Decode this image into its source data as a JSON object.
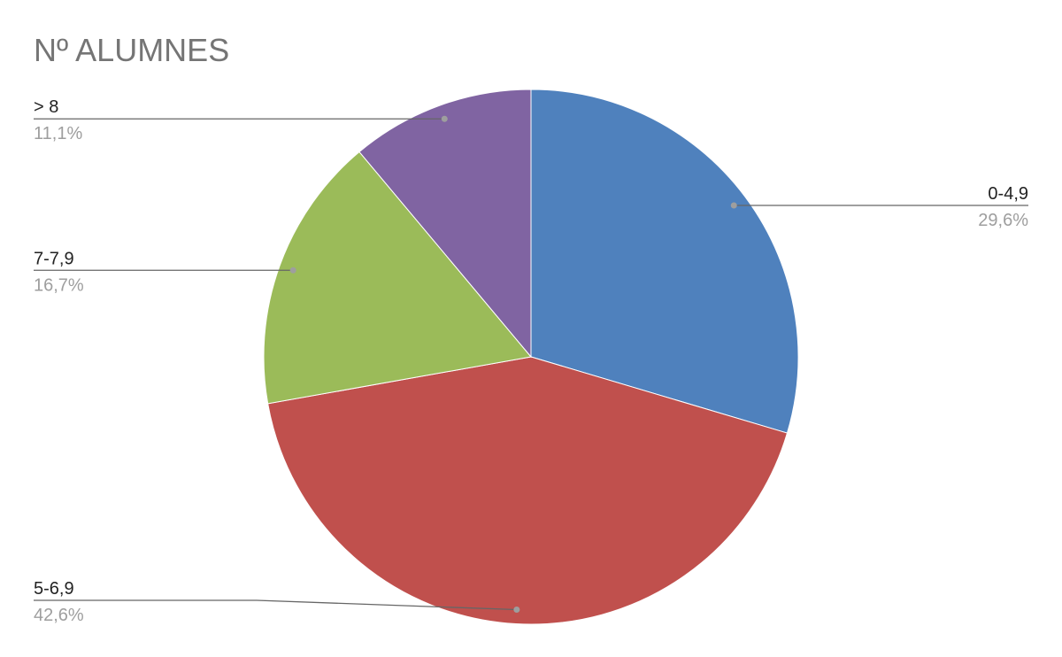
{
  "chart_data": {
    "type": "pie",
    "title": "Nº ALUMNES",
    "categories": [
      "0-4,9",
      "5-6,9",
      "7-7,9",
      "> 8"
    ],
    "values": [
      29.6,
      42.6,
      16.7,
      11.1
    ],
    "value_labels": [
      "29,6%",
      "42,6%",
      "16,7%",
      "11,1%"
    ],
    "colors": [
      "#4f81bd",
      "#c0504d",
      "#9bbb59",
      "#8064a2"
    ]
  }
}
